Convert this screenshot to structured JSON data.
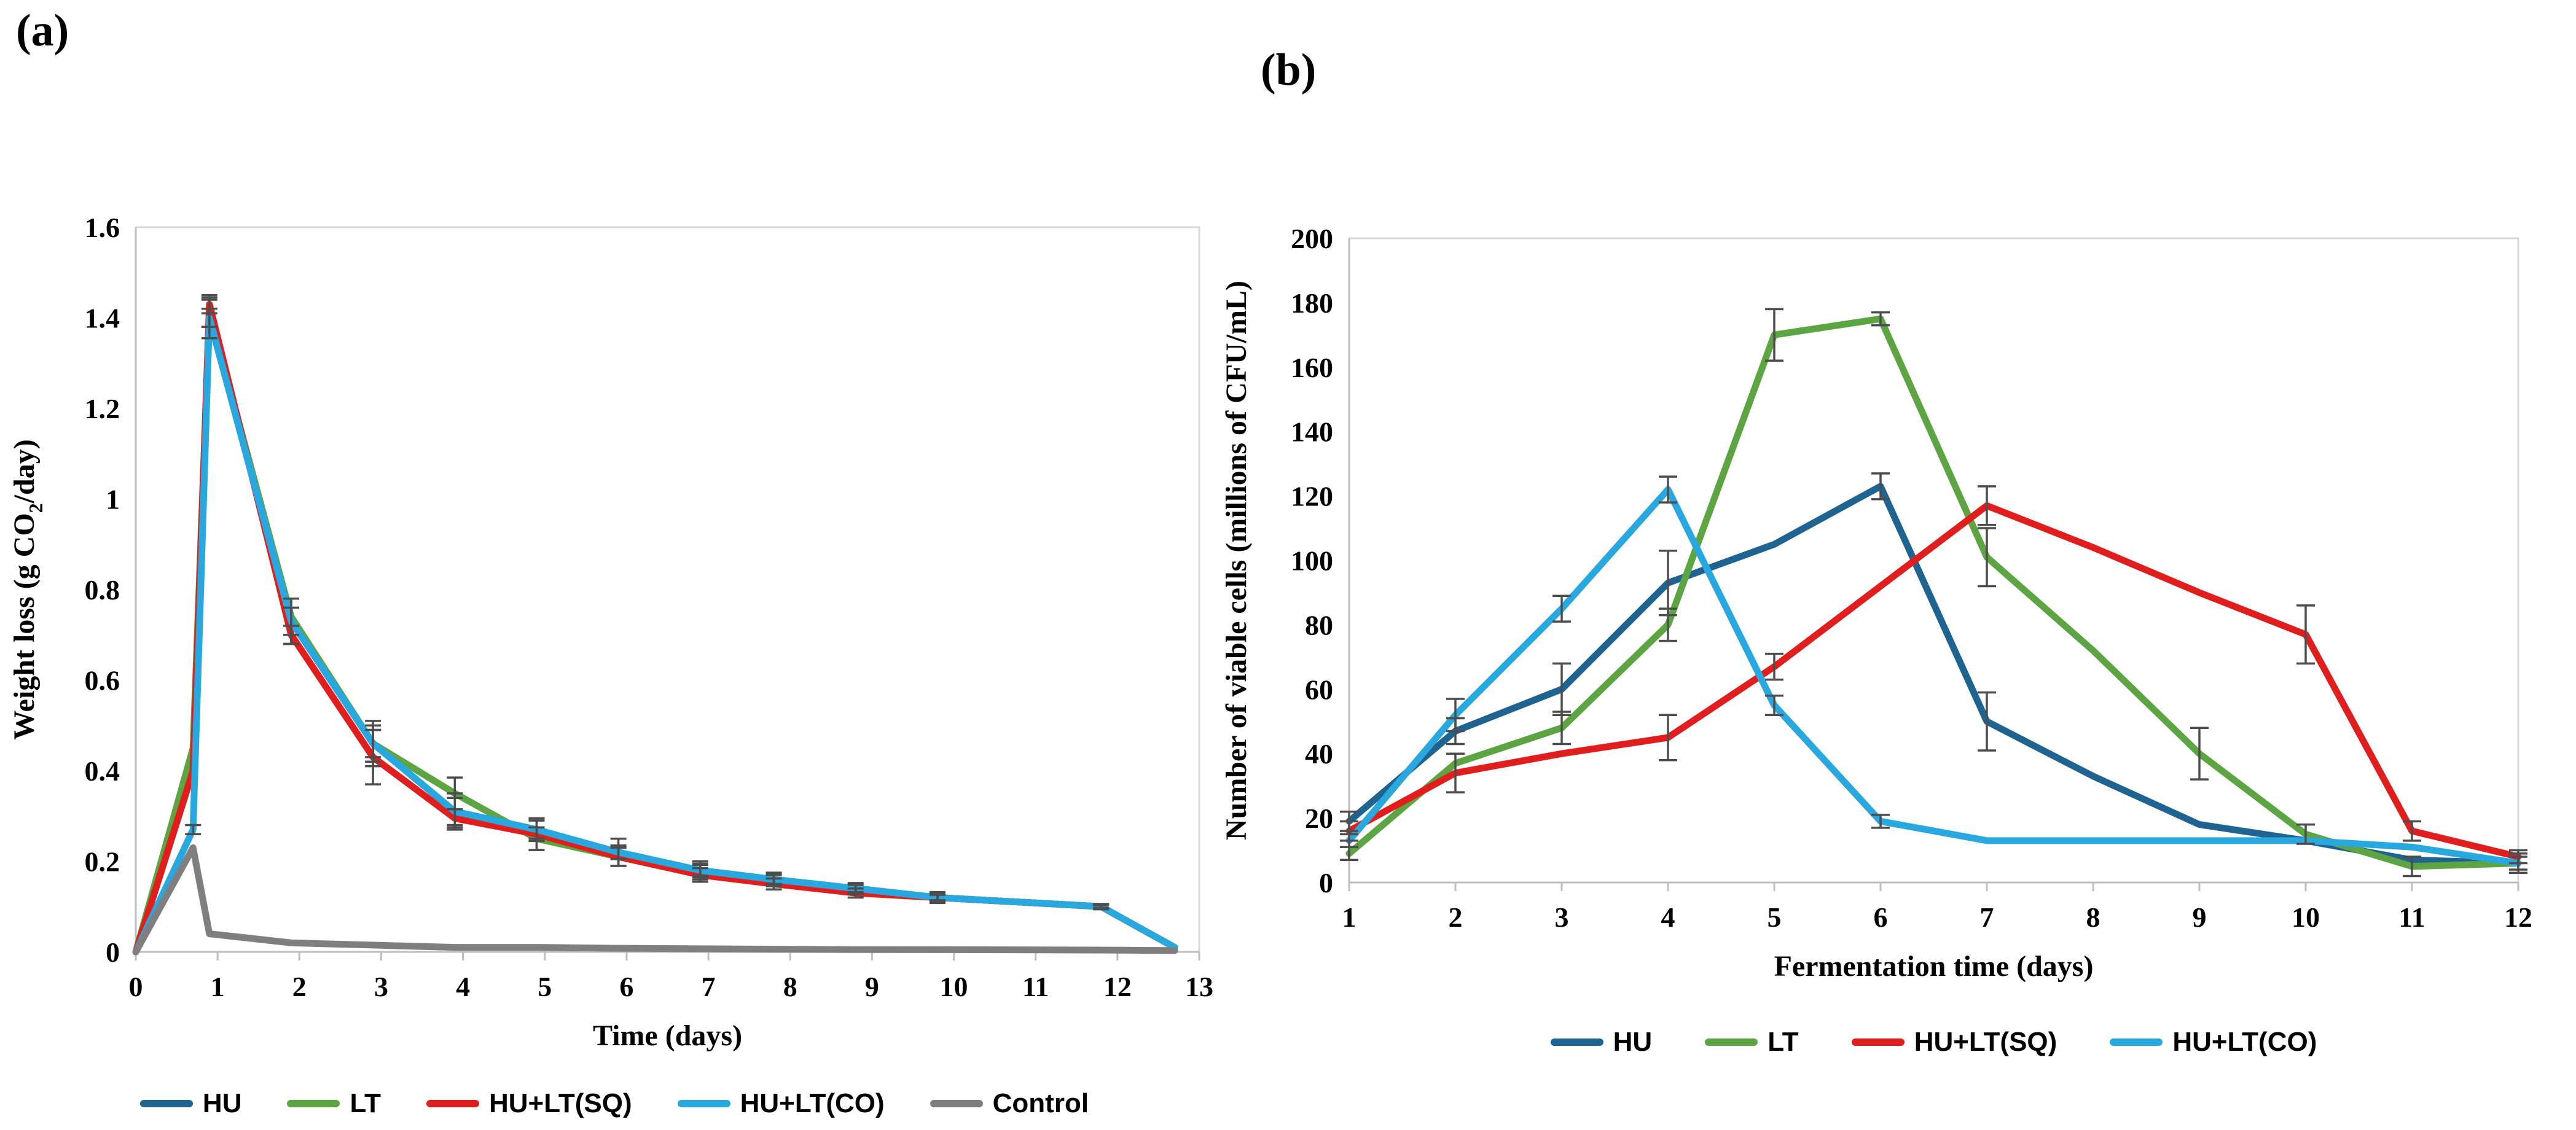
{
  "figure": {
    "background": "#ffffff"
  },
  "colors": {
    "hu": "#1F6391",
    "lt": "#5DA542",
    "hu_lt_sq": "#E01E1E",
    "hu_lt_co": "#29A8E0",
    "control": "#7F7F7F",
    "error_bar": "#4D4D4D",
    "plot_border": "#D9D9D9",
    "axis_line": "#BFBFBF",
    "text": "#000000"
  },
  "chart_data": [
    {
      "id": "a",
      "panel_label": "(a)",
      "type": "line",
      "title": "",
      "xlabel": "Time (days)",
      "ylabel": "Weight loss (g CO2/day)",
      "ylabel_parts": [
        "Weight loss (g CO",
        "2",
        "/day)"
      ],
      "xlim": [
        0,
        13
      ],
      "ylim": [
        0,
        1.6
      ],
      "x_ticks": [
        0,
        1,
        2,
        3,
        4,
        5,
        6,
        7,
        8,
        9,
        10,
        11,
        12,
        13
      ],
      "y_ticks": [
        0,
        0.2,
        0.4,
        0.6,
        0.8,
        1,
        1.2,
        1.4,
        1.6
      ],
      "y_tick_labels": [
        "0",
        "0.2",
        "0.4",
        "0.6",
        "0.8",
        "1",
        "1.2",
        "1.4",
        "1.6"
      ],
      "grid": false,
      "legend_position": "bottom",
      "x": [
        0,
        0.7,
        0.9,
        1.9,
        2.9,
        3.9,
        4.9,
        5.9,
        6.9,
        7.8,
        8.8,
        9.8,
        11.8,
        12.7
      ],
      "series": [
        {
          "name": "HU",
          "color_key": "hu",
          "values": [
            0,
            0.4,
            1.4,
            0.73,
            0.46,
            0.31,
            0.27,
            0.22,
            0.18,
            0.16,
            0.14,
            0.12,
            0.1,
            0.01
          ],
          "errors": [
            0,
            0,
            0.045,
            0.05,
            0.05,
            0.04,
            0.025,
            0.03,
            0.02,
            0.015,
            0.012,
            0.012,
            0.006,
            0
          ]
        },
        {
          "name": "LT",
          "color_key": "lt",
          "values": [
            0,
            0.45,
            1.41,
            0.74,
            0.46,
            0.35,
            0.25,
            0.21,
            0.18,
            0.16,
            0.14,
            0.12,
            0.1,
            0.01
          ],
          "errors": [
            0,
            0,
            0.03,
            0.04,
            0.03,
            0.035,
            0.025,
            0.02,
            0.015,
            0.012,
            0.01,
            0.008,
            0.004,
            0
          ]
        },
        {
          "name": "HU+LT(SQ)",
          "color_key": "hu_lt_sq",
          "values": [
            0,
            0.4,
            1.43,
            0.7,
            0.43,
            0.295,
            0.26,
            0.21,
            0.17,
            0.15,
            0.13,
            0.12,
            0.1,
            0.01
          ],
          "errors": [
            0,
            0,
            0.02,
            0.02,
            0.06,
            0.02,
            0.035,
            0.02,
            0.015,
            0.012,
            0.01,
            0.008,
            0.004,
            0
          ]
        },
        {
          "name": "HU+LT(CO)",
          "color_key": "hu_lt_co",
          "values": [
            0,
            0.27,
            1.4,
            0.73,
            0.46,
            0.31,
            0.27,
            0.22,
            0.18,
            0.16,
            0.14,
            0.12,
            0.1,
            0.01
          ],
          "errors": [
            0,
            0.01,
            0.02,
            0.03,
            0.04,
            0.03,
            0.02,
            0.015,
            0.012,
            0.01,
            0.008,
            0.006,
            0.003,
            0
          ]
        },
        {
          "name": "Control",
          "color_key": "control",
          "values": [
            0,
            0.23,
            0.04,
            0.02,
            0.015,
            0.01,
            0.01,
            0.008,
            0.007,
            0.006,
            0.005,
            0.005,
            0.004,
            0.003
          ],
          "errors": [
            0,
            0,
            0,
            0,
            0,
            0,
            0,
            0,
            0,
            0,
            0,
            0,
            0,
            0
          ]
        }
      ]
    },
    {
      "id": "b",
      "panel_label": "(b)",
      "type": "line",
      "title": "",
      "xlabel": "Fermentation time (days)",
      "ylabel": "Number of viable cells (millions of CFU/mL)",
      "xlim": [
        1,
        12
      ],
      "ylim": [
        0,
        200
      ],
      "x_ticks": [
        1,
        2,
        3,
        4,
        5,
        6,
        7,
        8,
        9,
        10,
        11,
        12
      ],
      "y_ticks": [
        0,
        20,
        40,
        60,
        80,
        100,
        120,
        140,
        160,
        180,
        200
      ],
      "grid": false,
      "legend_position": "bottom",
      "x": [
        1,
        2,
        3,
        4,
        5,
        6,
        7,
        8,
        9,
        10,
        11,
        12
      ],
      "series": [
        {
          "name": "HU",
          "color_key": "hu",
          "values": [
            19,
            47,
            60,
            93,
            105,
            123,
            50,
            33,
            18,
            13,
            7,
            6
          ],
          "errors": [
            3,
            4,
            8,
            10,
            0,
            4,
            9,
            0,
            0,
            0,
            0,
            2
          ]
        },
        {
          "name": "LT",
          "color_key": "lt",
          "values": [
            9,
            37,
            48,
            80,
            170,
            175,
            101,
            72,
            40,
            15,
            5,
            6
          ],
          "errors": [
            2,
            0,
            5,
            5,
            8,
            2,
            9,
            0,
            8,
            3,
            3,
            0
          ]
        },
        {
          "name": "HU+LT(SQ)",
          "color_key": "hu_lt_sq",
          "values": [
            16,
            34,
            40,
            45,
            67,
            92,
            117,
            104,
            90,
            77,
            16,
            8
          ],
          "errors": [
            3,
            6,
            0,
            7,
            4,
            0,
            6,
            0,
            0,
            9,
            3,
            2
          ]
        },
        {
          "name": "HU+LT(CO)",
          "color_key": "hu_lt_co",
          "values": [
            13,
            52,
            85,
            122,
            55,
            19,
            13,
            13,
            13,
            13,
            11,
            6
          ],
          "errors": [
            2,
            5,
            4,
            4,
            3,
            2,
            0,
            0,
            0,
            0,
            0,
            3
          ]
        }
      ]
    }
  ]
}
